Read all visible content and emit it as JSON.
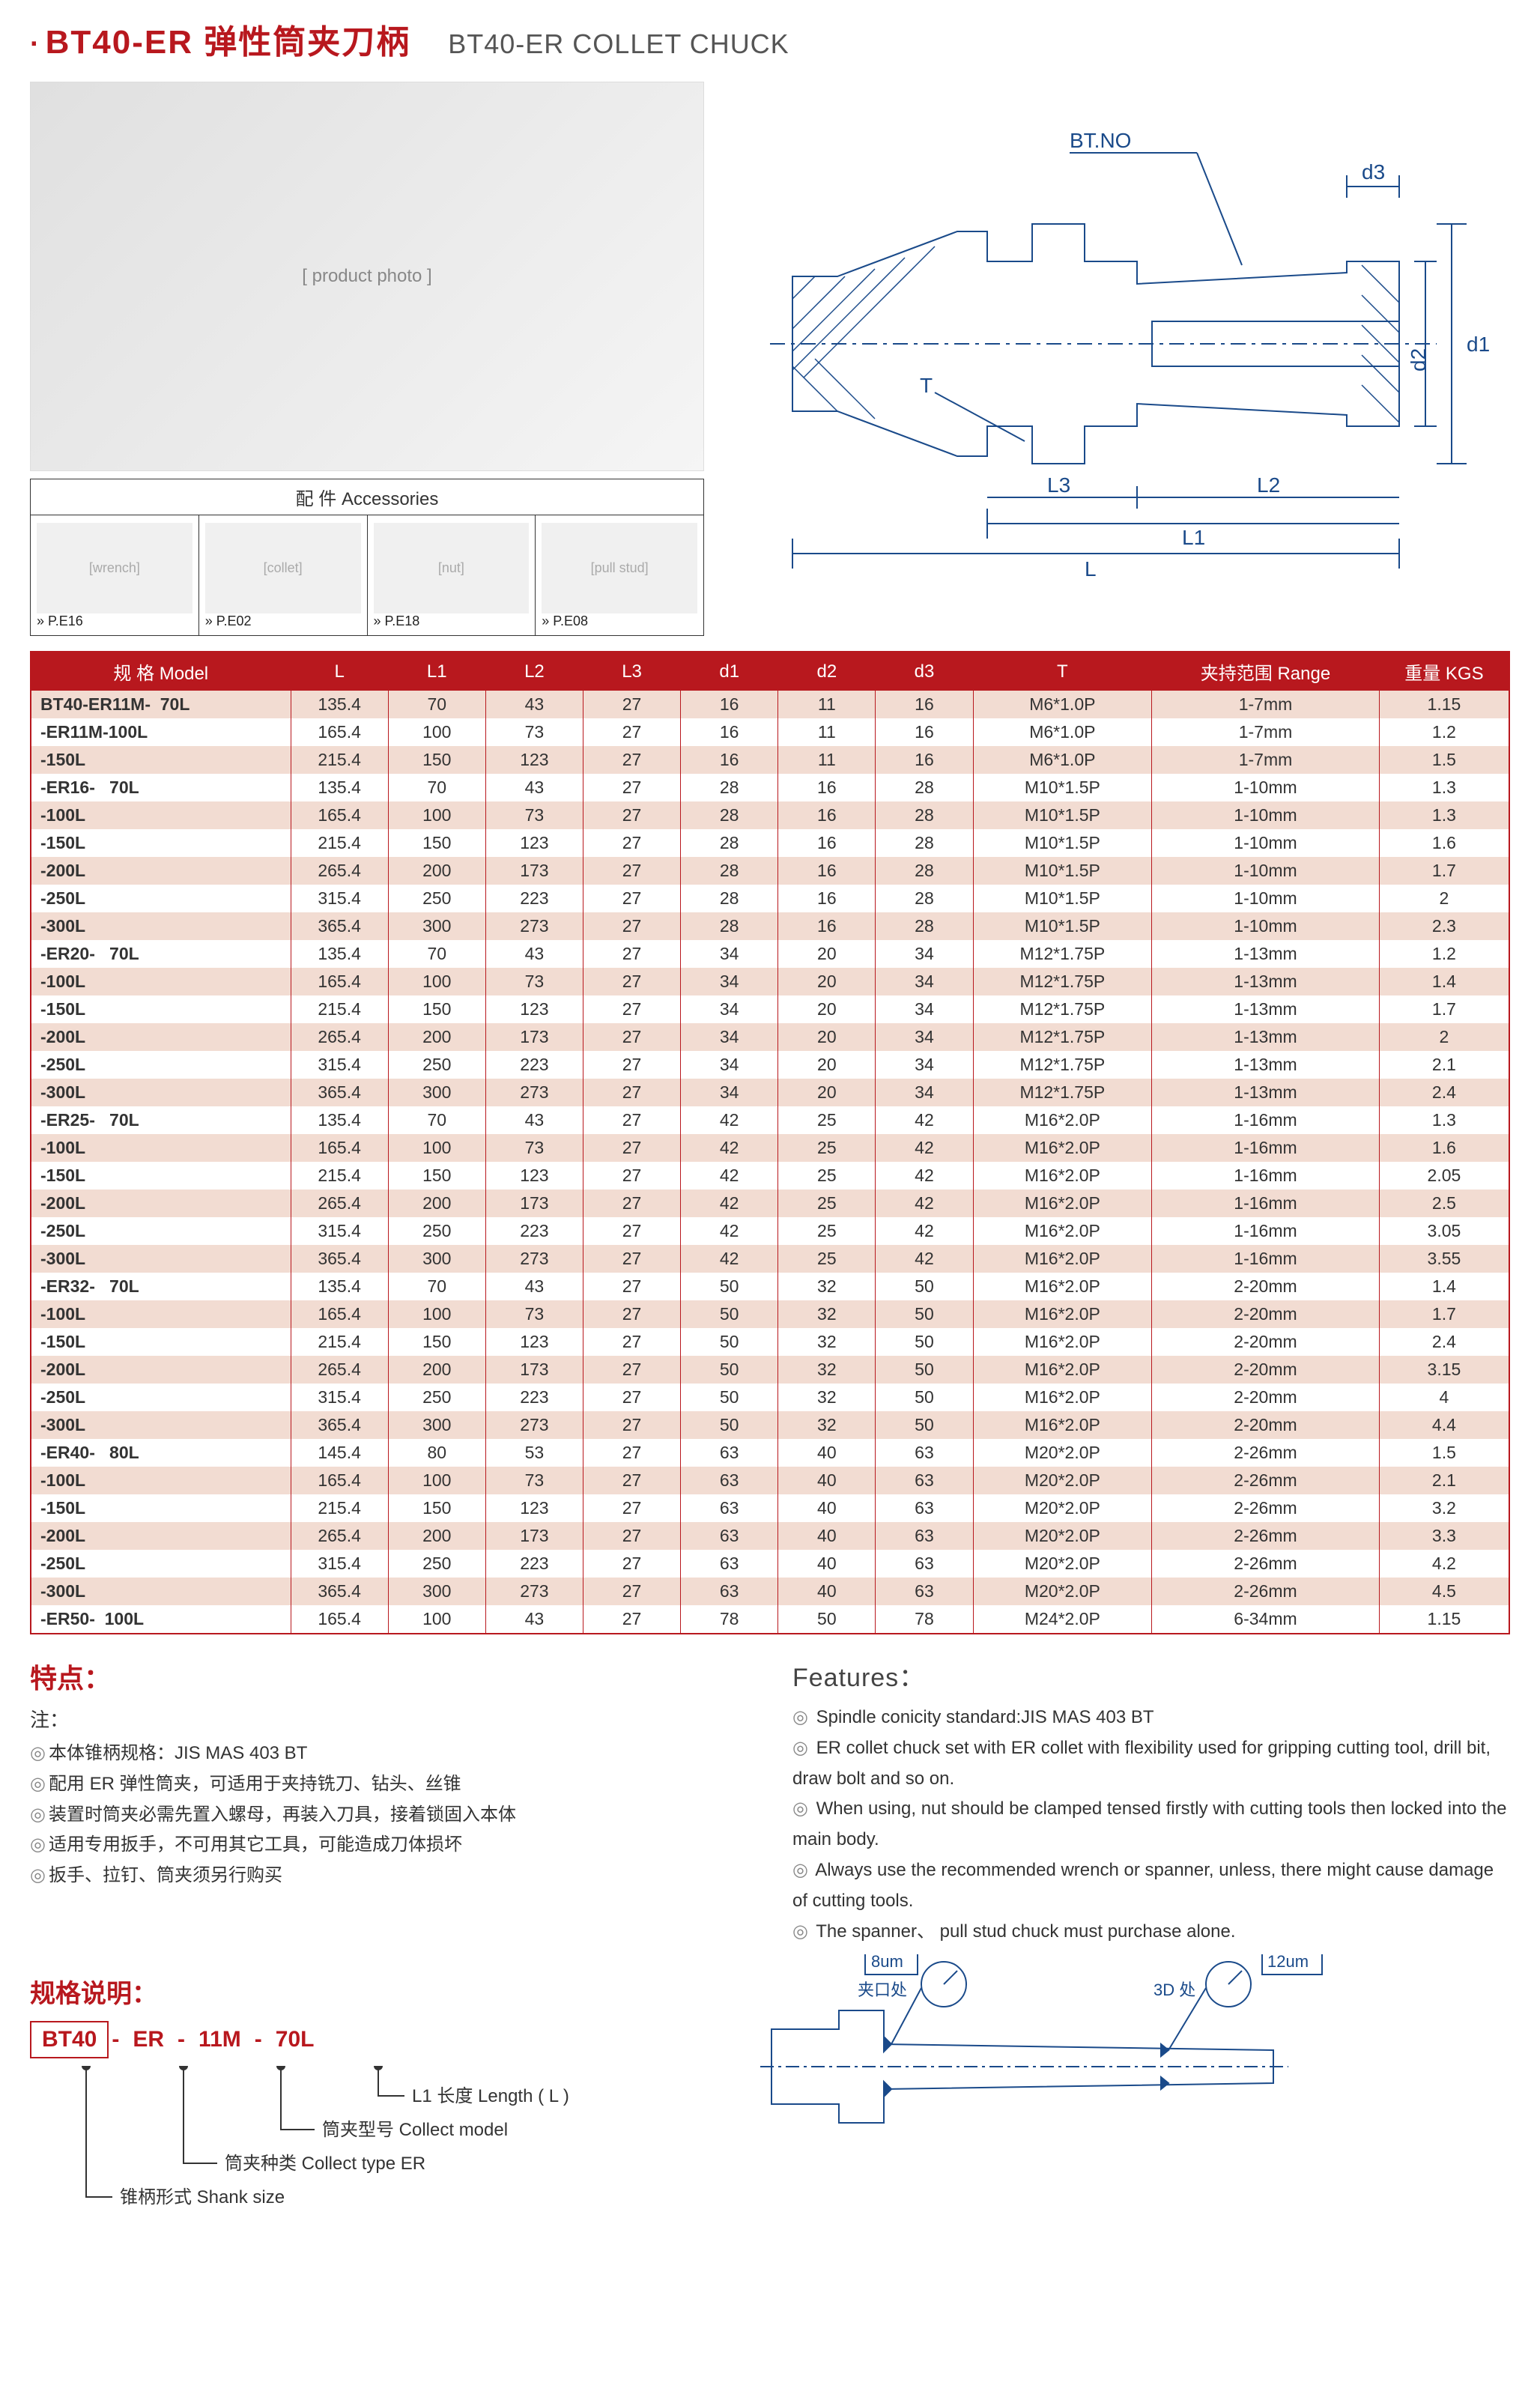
{
  "title": {
    "cn": "BT40-ER 弹性筒夹刀柄",
    "en": "BT40-ER COLLET CHUCK"
  },
  "accessories": {
    "header": "配 件  Accessories",
    "items": [
      {
        "ref": "» P.E16",
        "img": "wrench"
      },
      {
        "ref": "» P.E02",
        "img": "collet"
      },
      {
        "ref": "» P.E18",
        "img": "nut"
      },
      {
        "ref": "» P.E08",
        "img": "pull stud"
      }
    ]
  },
  "diagram_labels": {
    "btno": "BT.NO",
    "T": "T",
    "L": "L",
    "L1": "L1",
    "L2": "L2",
    "L3": "L3",
    "d1": "d1",
    "d2": "d2",
    "d3": "d3"
  },
  "table": {
    "headers": [
      "规 格 Model",
      "L",
      "L1",
      "L2",
      "L3",
      "d1",
      "d2",
      "d3",
      "T",
      "夹持范围 Range",
      "重量 KGS"
    ],
    "col_widths": [
      "16%",
      "6%",
      "6%",
      "6%",
      "6%",
      "6%",
      "6%",
      "6%",
      "11%",
      "14%",
      "8%"
    ],
    "rows": [
      [
        "BT40-ER11M-  70L",
        "135.4",
        "70",
        "43",
        "27",
        "16",
        "11",
        "16",
        "M6*1.0P",
        "1-7mm",
        "1.15"
      ],
      [
        "-ER11M-100L",
        "165.4",
        "100",
        "73",
        "27",
        "16",
        "11",
        "16",
        "M6*1.0P",
        "1-7mm",
        "1.2"
      ],
      [
        "-150L",
        "215.4",
        "150",
        "123",
        "27",
        "16",
        "11",
        "16",
        "M6*1.0P",
        "1-7mm",
        "1.5"
      ],
      [
        "-ER16-   70L",
        "135.4",
        "70",
        "43",
        "27",
        "28",
        "16",
        "28",
        "M10*1.5P",
        "1-10mm",
        "1.3"
      ],
      [
        "-100L",
        "165.4",
        "100",
        "73",
        "27",
        "28",
        "16",
        "28",
        "M10*1.5P",
        "1-10mm",
        "1.3"
      ],
      [
        "-150L",
        "215.4",
        "150",
        "123",
        "27",
        "28",
        "16",
        "28",
        "M10*1.5P",
        "1-10mm",
        "1.6"
      ],
      [
        "-200L",
        "265.4",
        "200",
        "173",
        "27",
        "28",
        "16",
        "28",
        "M10*1.5P",
        "1-10mm",
        "1.7"
      ],
      [
        "-250L",
        "315.4",
        "250",
        "223",
        "27",
        "28",
        "16",
        "28",
        "M10*1.5P",
        "1-10mm",
        "2"
      ],
      [
        "-300L",
        "365.4",
        "300",
        "273",
        "27",
        "28",
        "16",
        "28",
        "M10*1.5P",
        "1-10mm",
        "2.3"
      ],
      [
        "-ER20-   70L",
        "135.4",
        "70",
        "43",
        "27",
        "34",
        "20",
        "34",
        "M12*1.75P",
        "1-13mm",
        "1.2"
      ],
      [
        "-100L",
        "165.4",
        "100",
        "73",
        "27",
        "34",
        "20",
        "34",
        "M12*1.75P",
        "1-13mm",
        "1.4"
      ],
      [
        "-150L",
        "215.4",
        "150",
        "123",
        "27",
        "34",
        "20",
        "34",
        "M12*1.75P",
        "1-13mm",
        "1.7"
      ],
      [
        "-200L",
        "265.4",
        "200",
        "173",
        "27",
        "34",
        "20",
        "34",
        "M12*1.75P",
        "1-13mm",
        "2"
      ],
      [
        "-250L",
        "315.4",
        "250",
        "223",
        "27",
        "34",
        "20",
        "34",
        "M12*1.75P",
        "1-13mm",
        "2.1"
      ],
      [
        "-300L",
        "365.4",
        "300",
        "273",
        "27",
        "34",
        "20",
        "34",
        "M12*1.75P",
        "1-13mm",
        "2.4"
      ],
      [
        "-ER25-   70L",
        "135.4",
        "70",
        "43",
        "27",
        "42",
        "25",
        "42",
        "M16*2.0P",
        "1-16mm",
        "1.3"
      ],
      [
        "-100L",
        "165.4",
        "100",
        "73",
        "27",
        "42",
        "25",
        "42",
        "M16*2.0P",
        "1-16mm",
        "1.6"
      ],
      [
        "-150L",
        "215.4",
        "150",
        "123",
        "27",
        "42",
        "25",
        "42",
        "M16*2.0P",
        "1-16mm",
        "2.05"
      ],
      [
        "-200L",
        "265.4",
        "200",
        "173",
        "27",
        "42",
        "25",
        "42",
        "M16*2.0P",
        "1-16mm",
        "2.5"
      ],
      [
        "-250L",
        "315.4",
        "250",
        "223",
        "27",
        "42",
        "25",
        "42",
        "M16*2.0P",
        "1-16mm",
        "3.05"
      ],
      [
        "-300L",
        "365.4",
        "300",
        "273",
        "27",
        "42",
        "25",
        "42",
        "M16*2.0P",
        "1-16mm",
        "3.55"
      ],
      [
        "-ER32-   70L",
        "135.4",
        "70",
        "43",
        "27",
        "50",
        "32",
        "50",
        "M16*2.0P",
        "2-20mm",
        "1.4"
      ],
      [
        "-100L",
        "165.4",
        "100",
        "73",
        "27",
        "50",
        "32",
        "50",
        "M16*2.0P",
        "2-20mm",
        "1.7"
      ],
      [
        "-150L",
        "215.4",
        "150",
        "123",
        "27",
        "50",
        "32",
        "50",
        "M16*2.0P",
        "2-20mm",
        "2.4"
      ],
      [
        "-200L",
        "265.4",
        "200",
        "173",
        "27",
        "50",
        "32",
        "50",
        "M16*2.0P",
        "2-20mm",
        "3.15"
      ],
      [
        "-250L",
        "315.4",
        "250",
        "223",
        "27",
        "50",
        "32",
        "50",
        "M16*2.0P",
        "2-20mm",
        "4"
      ],
      [
        "-300L",
        "365.4",
        "300",
        "273",
        "27",
        "50",
        "32",
        "50",
        "M16*2.0P",
        "2-20mm",
        "4.4"
      ],
      [
        "-ER40-   80L",
        "145.4",
        "80",
        "53",
        "27",
        "63",
        "40",
        "63",
        "M20*2.0P",
        "2-26mm",
        "1.5"
      ],
      [
        "-100L",
        "165.4",
        "100",
        "73",
        "27",
        "63",
        "40",
        "63",
        "M20*2.0P",
        "2-26mm",
        "2.1"
      ],
      [
        "-150L",
        "215.4",
        "150",
        "123",
        "27",
        "63",
        "40",
        "63",
        "M20*2.0P",
        "2-26mm",
        "3.2"
      ],
      [
        "-200L",
        "265.4",
        "200",
        "173",
        "27",
        "63",
        "40",
        "63",
        "M20*2.0P",
        "2-26mm",
        "3.3"
      ],
      [
        "-250L",
        "315.4",
        "250",
        "223",
        "27",
        "63",
        "40",
        "63",
        "M20*2.0P",
        "2-26mm",
        "4.2"
      ],
      [
        "-300L",
        "365.4",
        "300",
        "273",
        "27",
        "63",
        "40",
        "63",
        "M20*2.0P",
        "2-26mm",
        "4.5"
      ],
      [
        "-ER50-  100L",
        "165.4",
        "100",
        "43",
        "27",
        "78",
        "50",
        "78",
        "M24*2.0P",
        "6-34mm",
        "1.15"
      ]
    ]
  },
  "features_cn": {
    "title": "特点：",
    "note": "注：",
    "lines": [
      "本体锥柄规格：JIS MAS 403 BT",
      "配用 ER 弹性筒夹，可适用于夹持铣刀、钻头、丝锥",
      "装置时筒夹必需先置入螺母，再装入刀具，接着锁固入本体",
      "适用专用扳手，不可用其它工具，可能造成刀体损坏",
      "扳手、拉钉、筒夹须另行购买"
    ]
  },
  "features_en": {
    "title": "Features：",
    "lines": [
      "Spindle conicity standard:JIS MAS 403 BT",
      "ER collet chuck set with ER collet with flexibility used for gripping cutting tool, drill bit, draw bolt and so on.",
      "When using, nut should be clamped tensed firstly with cutting tools then locked into the main body.",
      "Always use the recommended wrench or spanner, unless, there might cause damage of cutting tools.",
      "The spanner、 pull stud chuck must purchase alone."
    ]
  },
  "spec": {
    "title": "规格说明：",
    "parts": [
      "BT40",
      "ER",
      "11M",
      "70L"
    ],
    "labels": [
      {
        "text": "L1 长度  Length ( L )"
      },
      {
        "text": "筒夹型号  Collect model"
      },
      {
        "text": "筒夹种类  Collect type ER"
      },
      {
        "text": "锥柄形式  Shank size"
      }
    ]
  },
  "runout": {
    "left": "8um",
    "right": "12um",
    "left_label": "夹口处",
    "right_label": "3D 处"
  }
}
